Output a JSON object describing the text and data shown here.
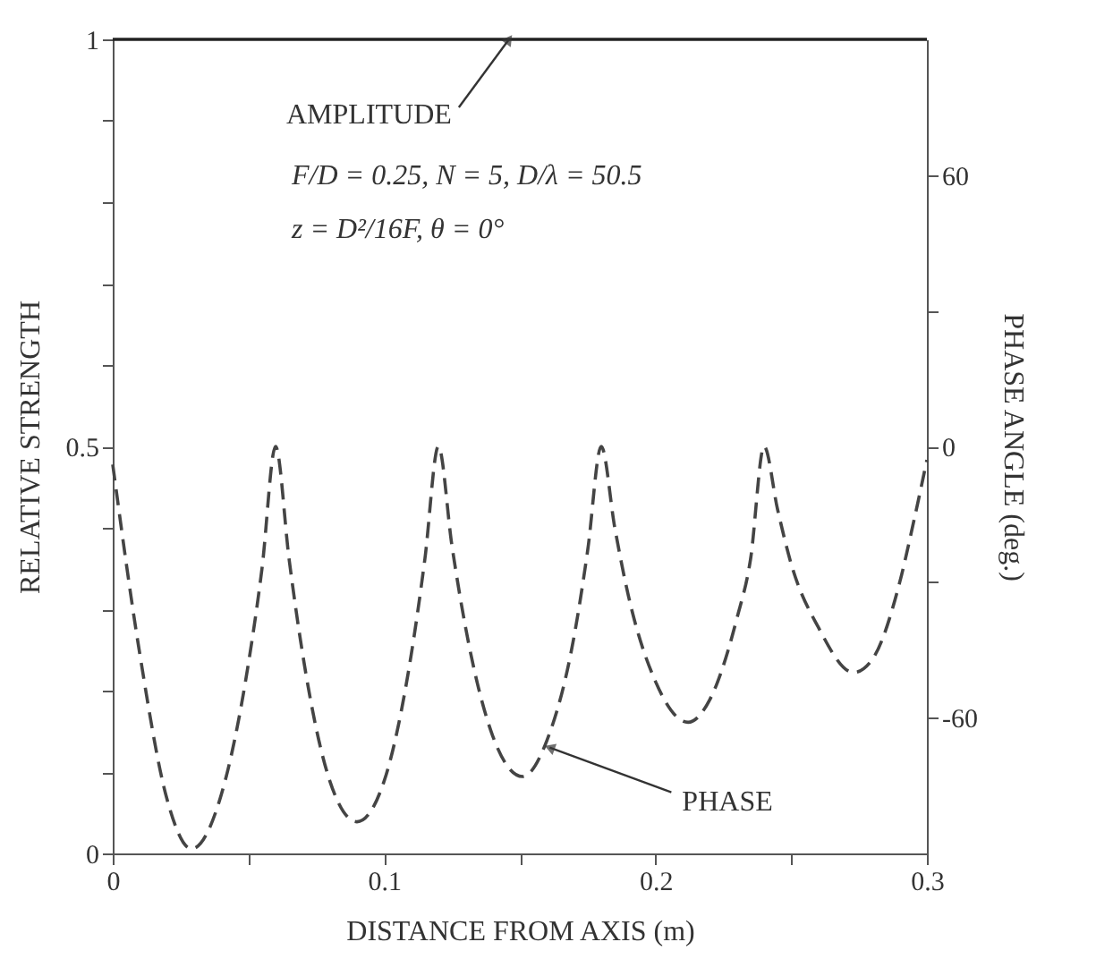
{
  "chart_data": {
    "type": "line",
    "xlabel": "DISTANCE FROM AXIS (m)",
    "ylabel": "RELATIVE STRENGTH",
    "y2label": "PHASE ANGLE (deg.)",
    "xlim": [
      0,
      0.3
    ],
    "xticks": [
      0,
      {
        "value": 0.05,
        "label": null
      },
      0.1,
      {
        "value": 0.15,
        "label": null
      },
      0.2,
      {
        "value": 0.25,
        "label": null
      },
      0.3
    ],
    "ylim": [
      0,
      1
    ],
    "yticks": [
      0,
      {
        "value": 0.1,
        "label": null
      },
      {
        "value": 0.2,
        "label": null
      },
      {
        "value": 0.3,
        "label": null
      },
      {
        "value": 0.4,
        "label": null
      },
      0.5,
      {
        "value": 0.6,
        "label": null
      },
      {
        "value": 0.7,
        "label": null
      },
      {
        "value": 0.8,
        "label": null
      },
      {
        "value": 0.9,
        "label": null
      },
      1
    ],
    "y2lim": [
      -90,
      90
    ],
    "y2ticks": [
      -60,
      {
        "value": -30,
        "label": null
      },
      0,
      {
        "value": 30,
        "label": null
      },
      60
    ],
    "grid": false,
    "series": [
      {
        "color": "#222222",
        "line_style": "solid",
        "x": [
          0,
          0.3
        ],
        "values": [
          1,
          1
        ]
      },
      {
        "color": "#444444",
        "line_style": "dashed",
        "axis": "y2",
        "x": [
          0,
          0.01,
          0.02,
          0.029,
          0.04,
          0.05,
          0.055,
          0.06,
          0.065,
          0.07,
          0.08,
          0.09,
          0.1,
          0.11,
          0.115,
          0.12,
          0.125,
          0.13,
          0.14,
          0.151,
          0.16,
          0.17,
          0.175,
          0.18,
          0.185,
          0.19,
          0.2,
          0.212,
          0.22,
          0.23,
          0.235,
          0.24,
          0.245,
          0.25,
          0.26,
          0.273,
          0.28,
          0.29,
          0.295,
          0.3
        ],
        "values": [
          -4,
          -46,
          -78,
          -89,
          -77,
          -48,
          -27,
          0,
          -25,
          -46,
          -74,
          -83,
          -74,
          -46,
          -25,
          0,
          -22,
          -40,
          -64,
          -73,
          -65,
          -42,
          -23,
          0,
          -18,
          -33,
          -52,
          -61,
          -56,
          -38,
          -25,
          0,
          -14,
          -26,
          -40,
          -50,
          -47,
          -30,
          -17,
          -3
        ]
      }
    ],
    "annotations": [
      {
        "text": "AMPLITUDE",
        "x": 0.146,
        "y": 1
      },
      {
        "text": "PHASE",
        "x": 0.161,
        "y": 0.13
      },
      "F/D = 0.25, N = 5, D/λ = 50.5",
      "z = D²/16F, θ = 0°"
    ]
  }
}
